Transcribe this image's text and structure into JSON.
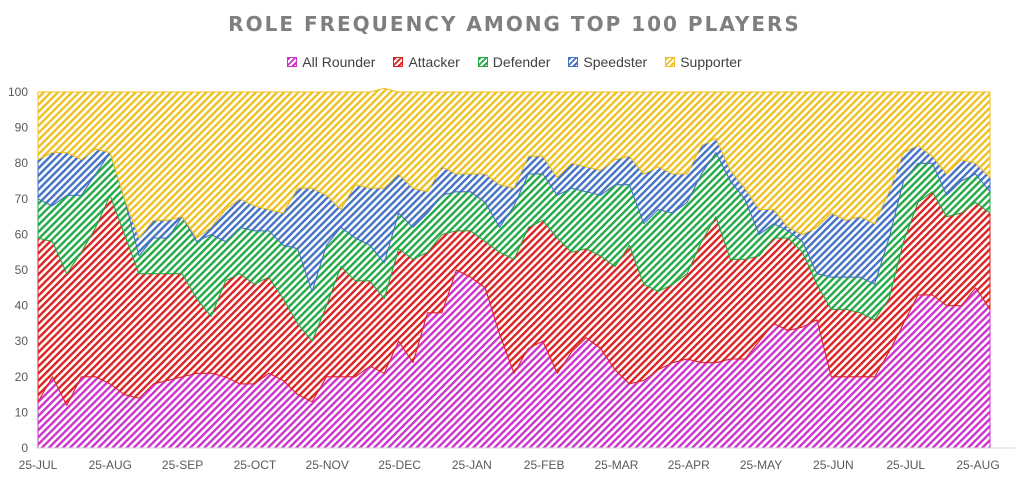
{
  "chart_data": {
    "type": "area",
    "stacked": true,
    "title": "ROLE FREQUENCY AMONG TOP 100 PLAYERS",
    "xlabel": "",
    "ylabel": "",
    "ylim": [
      0,
      100
    ],
    "yticks": [
      0,
      10,
      20,
      30,
      40,
      50,
      60,
      70,
      80,
      90,
      100
    ],
    "grid": false,
    "legend": "top",
    "x_tick_labels": [
      "25-JUL",
      "25-AUG",
      "25-SEP",
      "25-OCT",
      "25-NOV",
      "25-DEC",
      "25-JAN",
      "25-FEB",
      "25-MAR",
      "25-APR",
      "25-MAY",
      "25-JUN",
      "25-JUL",
      "25-AUG"
    ],
    "series": [
      {
        "name": "All Rounder",
        "color": "#cc33cc",
        "values": [
          13,
          20,
          12,
          20,
          20,
          18,
          15,
          14,
          18,
          19,
          20,
          21,
          21,
          20,
          18,
          18,
          21,
          19,
          15,
          13,
          20,
          20,
          20,
          23,
          21,
          30,
          24,
          38,
          38,
          50,
          48,
          45,
          32,
          21,
          28,
          30,
          21,
          27,
          31,
          28,
          22,
          18,
          19,
          22,
          24,
          25,
          24,
          24,
          25,
          25,
          30,
          35,
          33,
          34,
          36,
          20,
          20,
          20,
          20,
          27,
          35,
          43,
          43,
          40,
          40,
          45,
          39
        ]
      },
      {
        "name": "Attacker",
        "color": "#dd2222",
        "values": [
          46,
          38,
          37,
          35,
          42,
          53,
          45,
          35,
          31,
          30,
          29,
          21,
          16,
          27,
          31,
          28,
          27,
          23,
          20,
          17,
          20,
          31,
          27,
          24,
          21,
          26,
          29,
          17,
          22,
          11,
          13,
          13,
          23,
          32,
          34,
          34,
          38,
          28,
          25,
          26,
          29,
          39,
          27,
          22,
          22,
          24,
          34,
          41,
          28,
          28,
          24,
          24,
          26,
          21,
          10,
          19,
          19,
          18,
          16,
          15,
          23,
          26,
          29,
          25,
          26,
          24,
          27
        ]
      },
      {
        "name": "Defender",
        "color": "#22aa44",
        "values": [
          11,
          10,
          22,
          16,
          15,
          12,
          10,
          5,
          10,
          10,
          16,
          16,
          23,
          11,
          13,
          15,
          13,
          15,
          21,
          14,
          17,
          11,
          12,
          10,
          10,
          10,
          9,
          11,
          11,
          11,
          11,
          11,
          7,
          15,
          15,
          13,
          12,
          18,
          16,
          17,
          23,
          17,
          17,
          23,
          20,
          20,
          19,
          18,
          22,
          17,
          6,
          4,
          2,
          3,
          3,
          9,
          9,
          10,
          10,
          17,
          17,
          11,
          8,
          6,
          9,
          8,
          6
        ]
      },
      {
        "name": "Speedster",
        "color": "#4472c4",
        "values": [
          11,
          15,
          12,
          10,
          7,
          0,
          0,
          5,
          5,
          5,
          0,
          1,
          2,
          9,
          8,
          7,
          6,
          9,
          17,
          29,
          14,
          5,
          15,
          16,
          21,
          11,
          11,
          6,
          8,
          5,
          5,
          8,
          12,
          5,
          5,
          5,
          5,
          7,
          7,
          7,
          7,
          8,
          14,
          12,
          11,
          8,
          8,
          4,
          3,
          3,
          7,
          4,
          1,
          2,
          13,
          18,
          16,
          17,
          17,
          13,
          8,
          5,
          2,
          6,
          6,
          3,
          4
        ]
      },
      {
        "name": "Supporter",
        "color": "#f0c020",
        "values": [
          19,
          17,
          17,
          19,
          16,
          17,
          30,
          41,
          36,
          36,
          35,
          41,
          38,
          33,
          30,
          32,
          33,
          34,
          27,
          27,
          29,
          33,
          26,
          27,
          28,
          23,
          27,
          28,
          21,
          23,
          23,
          23,
          26,
          27,
          18,
          18,
          24,
          20,
          21,
          22,
          19,
          18,
          23,
          21,
          23,
          23,
          15,
          13,
          22,
          27,
          33,
          33,
          38,
          40,
          38,
          34,
          36,
          35,
          37,
          28,
          17,
          15,
          18,
          23,
          19,
          20,
          24
        ]
      }
    ]
  }
}
